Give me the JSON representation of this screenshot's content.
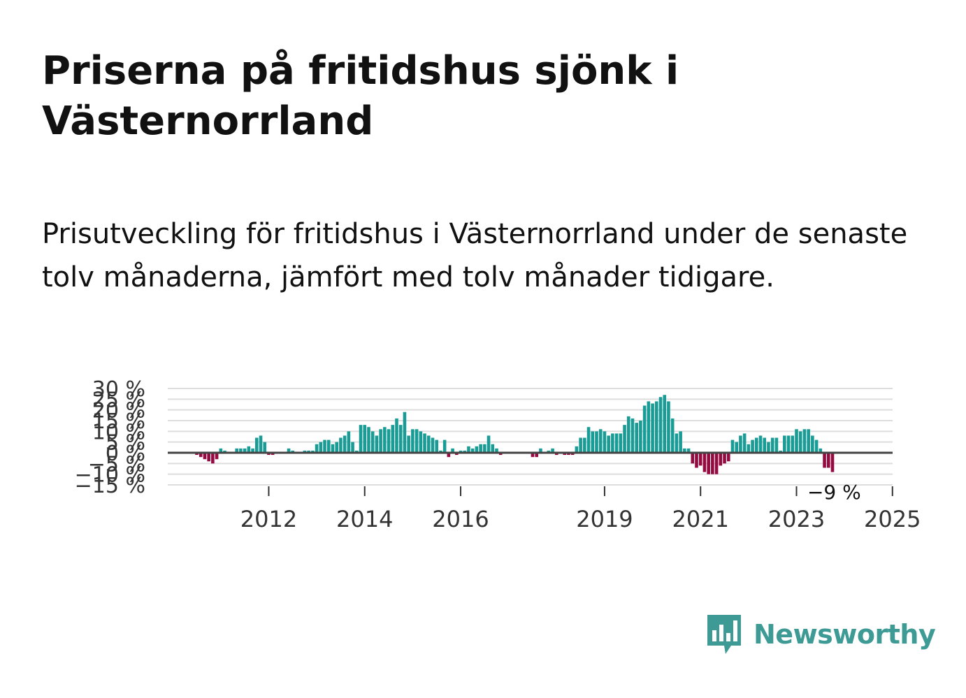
{
  "header": {
    "title": "Priserna på fritidshus sjönk i Västernorrland",
    "subtitle": "Prisutveckling för fritidshus i Västernorrland under de senaste tolv månaderna, jämfört med tolv månader tidigare."
  },
  "brand": {
    "name": "Newsworthy",
    "color": "#3d9a94"
  },
  "chart_data": {
    "type": "bar",
    "title": "",
    "xlabel": "",
    "ylabel": "",
    "ylim": [
      -15,
      30
    ],
    "y_ticks": [
      -15,
      -10,
      -5,
      0,
      5,
      10,
      15,
      20,
      25,
      30
    ],
    "y_tick_labels": [
      "−15 %",
      "−10 %",
      "−5 %",
      "0 %",
      "5 %",
      "10 %",
      "15 %",
      "20 %",
      "25 %",
      "30 %"
    ],
    "x_ticks": [
      "2012",
      "2014",
      "2016",
      "2019",
      "2021",
      "2023",
      "2025"
    ],
    "grid": true,
    "legend": "none",
    "colors": {
      "positive": "#1a9c96",
      "negative": "#960a42",
      "zero_line": "#444444",
      "grid": "#dddddd"
    },
    "end_label": "−9 %",
    "series": [
      {
        "start": "2011-01",
        "frequency": "monthly",
        "values": [
          -1,
          -2,
          -3,
          -4,
          -5,
          -3,
          2,
          1,
          0,
          0,
          2,
          2,
          2,
          3,
          2,
          7,
          8,
          5,
          -1,
          -1,
          0,
          0,
          0,
          2,
          1,
          0,
          0,
          1,
          1,
          1,
          4,
          5,
          6,
          6,
          4,
          5,
          7,
          8,
          10,
          5,
          1,
          13,
          13,
          12,
          10,
          8,
          11,
          12,
          11,
          13,
          16,
          13,
          19,
          8,
          11,
          11,
          10,
          9,
          8,
          7,
          6,
          1,
          6,
          -2,
          2,
          -1,
          1,
          1,
          3,
          2,
          3,
          4,
          4,
          8,
          4,
          2,
          -1,
          0,
          0,
          0,
          0,
          0,
          0,
          0,
          -2,
          -2,
          2,
          0,
          1,
          2,
          -1,
          0,
          -1,
          -1,
          -1,
          3,
          7,
          7,
          12,
          10,
          10,
          11,
          10,
          8,
          9,
          9,
          9,
          13,
          17,
          16,
          14,
          15,
          22,
          24,
          23,
          24,
          26,
          27,
          24,
          16,
          9,
          10,
          2,
          2,
          -5,
          -7,
          -6,
          -9,
          -10,
          -10,
          -10,
          -6,
          -5,
          -4,
          6,
          5,
          8,
          9,
          4,
          6,
          7,
          8,
          7,
          5,
          7,
          7,
          1,
          8,
          8,
          8,
          11,
          10,
          11,
          11,
          8,
          6,
          2,
          -7,
          -7,
          -9
        ]
      }
    ]
  }
}
